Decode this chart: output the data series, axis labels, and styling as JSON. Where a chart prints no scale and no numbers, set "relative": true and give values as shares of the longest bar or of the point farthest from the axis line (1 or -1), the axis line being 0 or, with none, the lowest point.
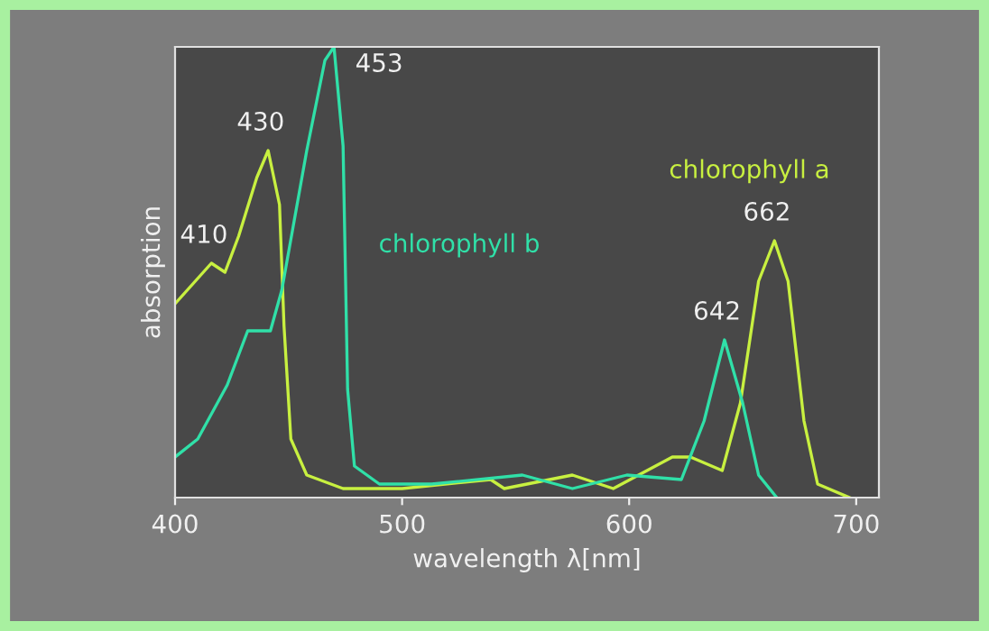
{
  "chart_data": {
    "type": "line",
    "relative": true,
    "xlabel": "wavelength λ[nm]",
    "ylabel": "absorption",
    "xlim": [
      400,
      710
    ],
    "xticks": [
      400,
      500,
      600,
      700
    ],
    "grid": false,
    "legend": false,
    "marker": "none",
    "line_style": "solid",
    "series": [
      {
        "name": "chlorophyll a",
        "color": "#c8f040",
        "x": [
          400,
          416,
          422,
          428,
          436,
          441,
          446,
          448,
          451,
          458,
          474,
          500,
          539,
          545,
          575,
          593,
          619,
          627,
          641,
          649,
          657,
          664,
          670,
          677,
          683,
          697
        ],
        "values": [
          0.43,
          0.52,
          0.5,
          0.58,
          0.71,
          0.77,
          0.65,
          0.38,
          0.13,
          0.05,
          0.02,
          0.02,
          0.04,
          0.02,
          0.05,
          0.02,
          0.09,
          0.09,
          0.06,
          0.21,
          0.48,
          0.57,
          0.48,
          0.17,
          0.03,
          0.0
        ]
      },
      {
        "name": "chlorophyll b",
        "color": "#30e0a8",
        "x": [
          400,
          410,
          423,
          432,
          442,
          447,
          458,
          466,
          470,
          474,
          476,
          479,
          490,
          513,
          553,
          575,
          599,
          623,
          633,
          642,
          650,
          657,
          665
        ],
        "values": [
          0.09,
          0.13,
          0.25,
          0.37,
          0.37,
          0.46,
          0.77,
          0.97,
          1.0,
          0.78,
          0.24,
          0.07,
          0.03,
          0.03,
          0.05,
          0.02,
          0.05,
          0.04,
          0.17,
          0.35,
          0.21,
          0.05,
          0.0
        ]
      }
    ],
    "annotations": [
      {
        "text": "410",
        "x": 416,
        "y": 0.52
      },
      {
        "text": "430",
        "x": 441,
        "y": 0.77
      },
      {
        "text": "453",
        "x": 470,
        "y": 1.0
      },
      {
        "text": "642",
        "x": 642,
        "y": 0.35
      },
      {
        "text": "662",
        "x": 664,
        "y": 0.57
      }
    ]
  }
}
